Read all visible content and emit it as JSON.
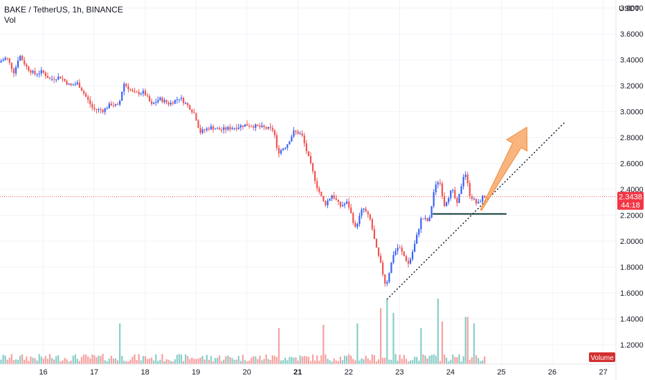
{
  "header": {
    "symbol_line": "BAKE / TetherUS, 1h, BINANCE",
    "vol_label": "Vol",
    "unit": "USDT"
  },
  "volume_badge": "Volume",
  "colors": {
    "up": "#3861f6",
    "down": "#ef5350",
    "vol_up": "#26a69a",
    "vol_down": "#ef5350",
    "price_tag": "#f23645",
    "arrow": "#f7a35c",
    "support_line": "#0b3a32"
  },
  "chart_data": {
    "type": "candlestick",
    "x_ticks": [
      "16",
      "17",
      "18",
      "19",
      "20",
      "21",
      "22",
      "23",
      "24",
      "25",
      "26",
      "27"
    ],
    "x_bold_tick": "21",
    "y_ticks": [
      "3.8000",
      "3.6000",
      "3.4000",
      "3.2000",
      "3.0000",
      "2.8000",
      "2.6000",
      "2.4000",
      "2.2000",
      "2.0000",
      "1.8000",
      "1.6000",
      "1.4000",
      "1.2000"
    ],
    "y_range": [
      1.05,
      3.82
    ],
    "x_range_days": [
      15.15,
      27.25
    ],
    "last_price": "2.3438",
    "countdown": "44:18",
    "price_path": [
      [
        15.15,
        3.38
      ],
      [
        15.3,
        3.42
      ],
      [
        15.45,
        3.3
      ],
      [
        15.55,
        3.44
      ],
      [
        15.7,
        3.34
      ],
      [
        15.85,
        3.29
      ],
      [
        16.0,
        3.31
      ],
      [
        16.15,
        3.25
      ],
      [
        16.35,
        3.27
      ],
      [
        16.55,
        3.2
      ],
      [
        16.7,
        3.22
      ],
      [
        16.85,
        3.12
      ],
      [
        17.0,
        3.02
      ],
      [
        17.2,
        3.01
      ],
      [
        17.35,
        3.06
      ],
      [
        17.5,
        3.04
      ],
      [
        17.6,
        3.22
      ],
      [
        17.8,
        3.14
      ],
      [
        18.0,
        3.15
      ],
      [
        18.15,
        3.05
      ],
      [
        18.3,
        3.1
      ],
      [
        18.5,
        3.06
      ],
      [
        18.7,
        3.11
      ],
      [
        18.9,
        3.03
      ],
      [
        19.0,
        2.98
      ],
      [
        19.1,
        2.84
      ],
      [
        19.3,
        2.88
      ],
      [
        19.5,
        2.86
      ],
      [
        19.8,
        2.88
      ],
      [
        20.0,
        2.9
      ],
      [
        20.3,
        2.88
      ],
      [
        20.55,
        2.86
      ],
      [
        20.62,
        2.68
      ],
      [
        20.8,
        2.74
      ],
      [
        20.95,
        2.85
      ],
      [
        21.1,
        2.82
      ],
      [
        21.25,
        2.62
      ],
      [
        21.4,
        2.42
      ],
      [
        21.55,
        2.28
      ],
      [
        21.7,
        2.36
      ],
      [
        21.85,
        2.27
      ],
      [
        22.0,
        2.3
      ],
      [
        22.15,
        2.1
      ],
      [
        22.3,
        2.26
      ],
      [
        22.45,
        2.16
      ],
      [
        22.55,
        1.96
      ],
      [
        22.65,
        1.82
      ],
      [
        22.75,
        1.65
      ],
      [
        22.9,
        1.9
      ],
      [
        23.0,
        1.96
      ],
      [
        23.2,
        1.82
      ],
      [
        23.3,
        1.95
      ],
      [
        23.45,
        2.18
      ],
      [
        23.6,
        2.15
      ],
      [
        23.7,
        2.4
      ],
      [
        23.8,
        2.48
      ],
      [
        23.9,
        2.28
      ],
      [
        24.05,
        2.4
      ],
      [
        24.15,
        2.28
      ],
      [
        24.3,
        2.55
      ],
      [
        24.4,
        2.36
      ],
      [
        24.55,
        2.28
      ],
      [
        24.65,
        2.34
      ]
    ],
    "volume": {
      "base_level": 0.13,
      "spikes": [
        {
          "day": 17.5,
          "level": 0.62
        },
        {
          "day": 20.6,
          "level": 0.55
        },
        {
          "day": 21.5,
          "level": 0.6
        },
        {
          "day": 22.15,
          "level": 0.62
        },
        {
          "day": 22.6,
          "level": 0.85
        },
        {
          "day": 22.72,
          "level": 0.98
        },
        {
          "day": 22.85,
          "level": 0.78
        },
        {
          "day": 23.4,
          "level": 0.55
        },
        {
          "day": 23.75,
          "level": 1.0
        },
        {
          "day": 23.82,
          "level": 0.65
        },
        {
          "day": 24.3,
          "level": 0.72
        },
        {
          "day": 24.45,
          "level": 0.62
        }
      ]
    },
    "annotations": {
      "trendline": [
        [
          22.75,
          1.55
        ],
        [
          26.25,
          2.92
        ]
      ],
      "support": [
        [
          23.65,
          2.21
        ],
        [
          25.1,
          2.21
        ]
      ],
      "arrow": {
        "from": [
          24.6,
          2.24
        ],
        "to": [
          25.5,
          2.88
        ]
      }
    }
  }
}
